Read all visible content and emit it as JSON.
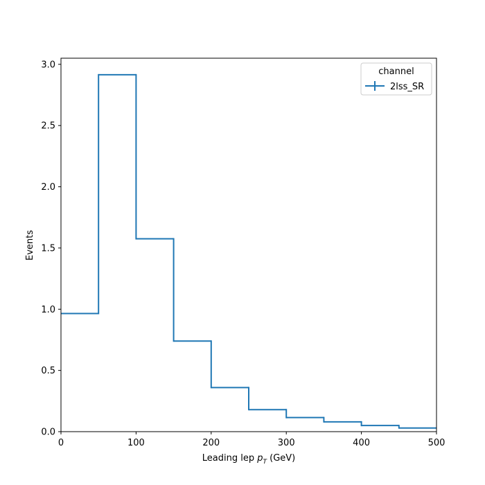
{
  "chart_data": {
    "type": "step",
    "title": "",
    "xlabel_main": "Leading lep ",
    "xlabel_sym": "p",
    "xlabel_sub": "T",
    "xlabel_unit": " (GeV)",
    "ylabel": "Events",
    "xlim": [
      0,
      500
    ],
    "ylim": [
      0,
      3.05
    ],
    "xticks": [
      0,
      100,
      200,
      300,
      400,
      500
    ],
    "yticks": [
      0.0,
      0.5,
      1.0,
      1.5,
      2.0,
      2.5,
      3.0
    ],
    "xtick_labels": [
      "0",
      "100",
      "200",
      "300",
      "400",
      "500"
    ],
    "ytick_labels": [
      "0.0",
      "0.5",
      "1.0",
      "1.5",
      "2.0",
      "2.5",
      "3.0"
    ],
    "bin_edges": [
      0,
      50,
      100,
      150,
      200,
      250,
      300,
      350,
      400,
      450,
      500
    ],
    "series": [
      {
        "name": "2lss_SR",
        "color": "#1f77b4",
        "values": [
          0.965,
          2.915,
          1.575,
          0.74,
          0.36,
          0.18,
          0.115,
          0.08,
          0.05,
          0.03
        ]
      }
    ],
    "legend": {
      "title": "channel",
      "placement": "upper right"
    },
    "grid": false
  }
}
